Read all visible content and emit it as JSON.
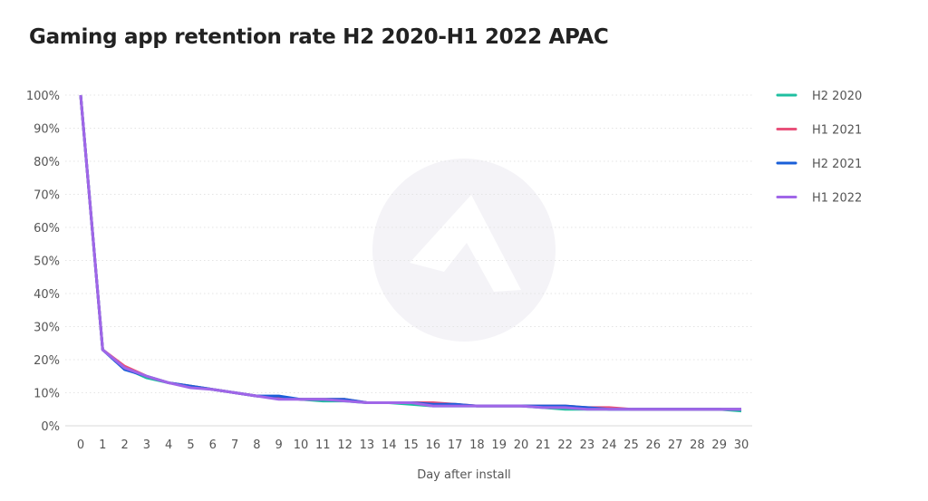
{
  "chart_data": {
    "type": "line",
    "title": "Gaming app retention rate H2 2020-H1 2022 APAC",
    "xlabel": "Day after install",
    "ylabel": "",
    "x": [
      0,
      1,
      2,
      3,
      4,
      5,
      6,
      7,
      8,
      9,
      10,
      11,
      12,
      13,
      14,
      15,
      16,
      17,
      18,
      19,
      20,
      21,
      22,
      23,
      24,
      25,
      26,
      27,
      28,
      29,
      30
    ],
    "ylim": [
      0,
      100
    ],
    "yticks": [
      "0%",
      "10%",
      "20%",
      "30%",
      "40%",
      "50%",
      "60%",
      "70%",
      "80%",
      "90%",
      "100%"
    ],
    "grid": true,
    "legend": "right",
    "series": [
      {
        "name": "H2 2020",
        "color": "#1fbfa0",
        "values": [
          100,
          23,
          17.5,
          14.5,
          13,
          12,
          11,
          10,
          9,
          8.5,
          8,
          7.5,
          7.5,
          7,
          7,
          6.5,
          6,
          6,
          6,
          6,
          6,
          5.5,
          5,
          5,
          5,
          5,
          5,
          5,
          5,
          5,
          4.5
        ]
      },
      {
        "name": "H1 2021",
        "color": "#e8507a",
        "values": [
          100,
          23,
          18,
          15,
          13,
          12,
          11,
          10,
          9,
          8.5,
          8,
          8,
          8,
          7,
          7,
          7,
          7,
          6.5,
          6,
          6,
          6,
          6,
          6,
          5.5,
          5.5,
          5,
          5,
          5,
          5,
          5,
          5
        ]
      },
      {
        "name": "H2 2021",
        "color": "#1a5fd8",
        "values": [
          100,
          23,
          17,
          15,
          13,
          12,
          11,
          10,
          9,
          9,
          8,
          8,
          8,
          7,
          7,
          7,
          6.5,
          6.5,
          6,
          6,
          6,
          6,
          6,
          5.5,
          5,
          5,
          5,
          5,
          5,
          5,
          5
        ]
      },
      {
        "name": "H1 2022",
        "color": "#a066e8",
        "values": [
          100,
          23,
          17.5,
          15,
          13,
          11.5,
          11,
          10,
          9,
          8,
          8,
          8,
          7.5,
          7,
          7,
          7,
          6,
          6,
          6,
          6,
          6,
          5.5,
          5.5,
          5,
          5,
          5,
          5,
          5,
          5,
          5,
          5
        ]
      }
    ]
  }
}
